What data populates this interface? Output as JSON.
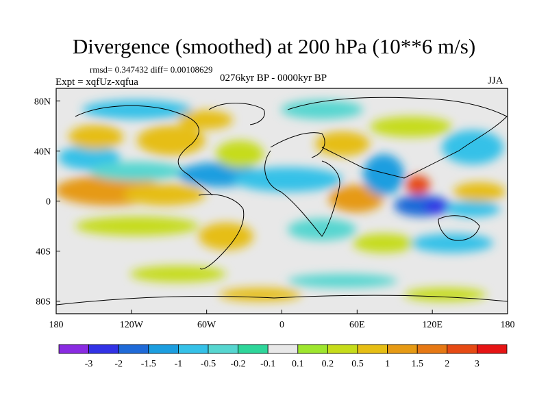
{
  "title": "Divergence (smoothed) at 200 hPa (10**6 m/s)",
  "stats_line": "rmsd= 0.347432 diff= 0.00108629",
  "experiment": "Expt = xqfUz-xqfua",
  "period": "0276kyr BP - 0000kyr BP",
  "season": "JJA",
  "chart_data": {
    "type": "heatmap",
    "variable": "Divergence (smoothed) at 200 hPa",
    "units": "10**6 m/s",
    "x_range": [
      -180,
      180
    ],
    "y_range": [
      -90,
      90
    ],
    "x_ticks": [
      "180",
      "120W",
      "60W",
      "0",
      "60E",
      "120E",
      "180"
    ],
    "y_ticks": [
      "80N",
      "40N",
      "0",
      "40S",
      "80S"
    ],
    "colorbar_labels": [
      "-3",
      "-2",
      "-1.5",
      "-1",
      "-0.5",
      "-0.2",
      "-0.1",
      "0.1",
      "0.2",
      "0.5",
      "1",
      "1.5",
      "2",
      "3"
    ],
    "colorbar_colors": [
      "#8a2be2",
      "#3232e6",
      "#1f6ad8",
      "#1c9ee0",
      "#35c1e8",
      "#56d6d0",
      "#2ed69a",
      "#e8e8e8",
      "#9ee62e",
      "#c6dc1a",
      "#e6be14",
      "#e69a14",
      "#e67814",
      "#e64a14",
      "#e61414"
    ]
  }
}
